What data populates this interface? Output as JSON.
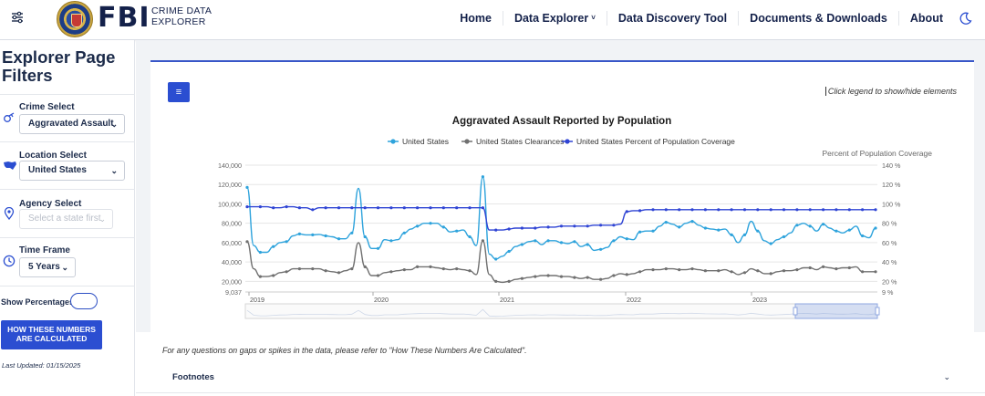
{
  "header": {
    "brand": "FBI",
    "brand_sub_line1": "CRIME DATA",
    "brand_sub_line2": "EXPLORER",
    "nav": [
      {
        "label": "Home"
      },
      {
        "label": "Data Explorer",
        "has_caret": true
      },
      {
        "label": "Data Discovery Tool"
      },
      {
        "label": "Documents & Downloads"
      },
      {
        "label": "About"
      }
    ]
  },
  "sidebar": {
    "title_line1": "Explorer Page",
    "title_line2": "Filters",
    "crime_select": {
      "label": "Crime Select",
      "value": "Aggravated Assault"
    },
    "location_select": {
      "label": "Location Select",
      "value": "United States"
    },
    "agency_select": {
      "label": "Agency Select",
      "placeholder": "Select a state first"
    },
    "time_frame": {
      "label": "Time Frame",
      "value": "5 Years"
    },
    "show_percentages_label": "Show Percentages:",
    "show_percentages_on": false,
    "how_button_line1": "HOW THESE NUMBERS",
    "how_button_line2": "ARE CALCULATED",
    "last_updated": "Last Updated: 01/15/2025"
  },
  "main": {
    "legend_hint": "Click legend to show/hide elements",
    "note": "For any questions on gaps or spikes in the data, please refer to \"How These Numbers Are Calculated\".",
    "footnotes_label": "Footnotes"
  },
  "colors": {
    "accent": "#2b4ed1",
    "series_us": "#2ea3dc",
    "series_clearances": "#707070",
    "series_pct": "#2f44d4"
  },
  "chart_data": {
    "type": "line",
    "title": "Aggravated Assault Reported by Population",
    "y_left_ticks": [
      "140,000",
      "120,000",
      "100,000",
      "80,000",
      "60,000",
      "40,000",
      "20,000",
      "9,037"
    ],
    "y_left_range": [
      9037,
      140000
    ],
    "y_right_label": "Percent of Population Coverage",
    "y_right_ticks": [
      "140 %",
      "120 %",
      "100 %",
      "80 %",
      "60 %",
      "40 %",
      "20 %",
      "9 %"
    ],
    "y_right_range": [
      9,
      140
    ],
    "x_labels": [
      "2019",
      "2020",
      "2021",
      "2022",
      "2023"
    ],
    "x_start": "2019-01",
    "x_end": "2023-12",
    "legend_position": "top-center",
    "series": [
      {
        "name": "United States",
        "axis": "left",
        "values": [
          117000,
          57000,
          50000,
          50000,
          56000,
          60000,
          61000,
          67000,
          69000,
          68000,
          68000,
          68500,
          67000,
          66000,
          64000,
          64000,
          70000,
          116000,
          66000,
          54000,
          54000,
          63000,
          62000,
          63000,
          70000,
          74000,
          77000,
          80000,
          80000,
          80000,
          76000,
          71000,
          72000,
          73000,
          66000,
          57000,
          128000,
          48000,
          43000,
          46000,
          51000,
          56000,
          58000,
          61000,
          62000,
          58000,
          62000,
          62000,
          60000,
          59000,
          61000,
          56000,
          58000,
          52000,
          53000,
          55000,
          62000,
          66000,
          64000,
          63000,
          71000,
          72000,
          72000,
          77000,
          81000,
          79000,
          76000,
          80000,
          82000,
          78000,
          75000,
          74000,
          73000,
          74000,
          68000,
          60000,
          68000,
          82000,
          72000,
          62000,
          59000,
          63000,
          66000,
          70000,
          78000,
          80000,
          77000,
          72000,
          79000,
          75000,
          72000,
          70000,
          73000,
          77000,
          67000,
          65000,
          75000
        ],
        "note": "values sampled at ~semi-monthly intervals across 2019-2023"
      },
      {
        "name": "United States Clearances",
        "axis": "left",
        "values": [
          61000,
          33000,
          25000,
          25000,
          26000,
          29000,
          30000,
          33000,
          33000,
          33000,
          33000,
          33000,
          31000,
          30000,
          29000,
          31000,
          33000,
          60000,
          35000,
          26000,
          26000,
          29000,
          30000,
          31000,
          32000,
          32000,
          35000,
          35000,
          35000,
          34000,
          33000,
          32000,
          33000,
          32000,
          31000,
          27000,
          62000,
          27000,
          20000,
          19000,
          20000,
          22000,
          23000,
          24000,
          25000,
          26000,
          26000,
          26000,
          25000,
          25000,
          24000,
          23000,
          24000,
          22000,
          22000,
          23000,
          26000,
          28000,
          27000,
          28000,
          30000,
          32000,
          32000,
          32000,
          33000,
          33000,
          32000,
          32000,
          33000,
          32000,
          31000,
          31000,
          31000,
          32000,
          30000,
          27000,
          29000,
          33000,
          31000,
          28000,
          28000,
          30000,
          31000,
          31000,
          32000,
          34000,
          34000,
          32000,
          35000,
          34000,
          33000,
          34000,
          34000,
          35000,
          30000,
          30000,
          30000
        ]
      },
      {
        "name": "United States Percent of Population Coverage",
        "axis": "right",
        "values": [
          97,
          97,
          97,
          97,
          96,
          96,
          97,
          97,
          96,
          96,
          94,
          96,
          96,
          96,
          96,
          96,
          96,
          96,
          96,
          96,
          96,
          96,
          96,
          96,
          96,
          96,
          96,
          96,
          96,
          96,
          96,
          96,
          96,
          96,
          96,
          96,
          96,
          73,
          73,
          73,
          74,
          75,
          75,
          75,
          75,
          76,
          76,
          76,
          77,
          77,
          77,
          77,
          77,
          78,
          78,
          78,
          78,
          79,
          92,
          93,
          93,
          94,
          94,
          94,
          94,
          94,
          94,
          94,
          94,
          94,
          94,
          94,
          94,
          94,
          94,
          94,
          94,
          94,
          94,
          94,
          94,
          94,
          94,
          94,
          94,
          94,
          94,
          94,
          94,
          94,
          94,
          94,
          94,
          94,
          94,
          94,
          94
        ]
      }
    ]
  }
}
